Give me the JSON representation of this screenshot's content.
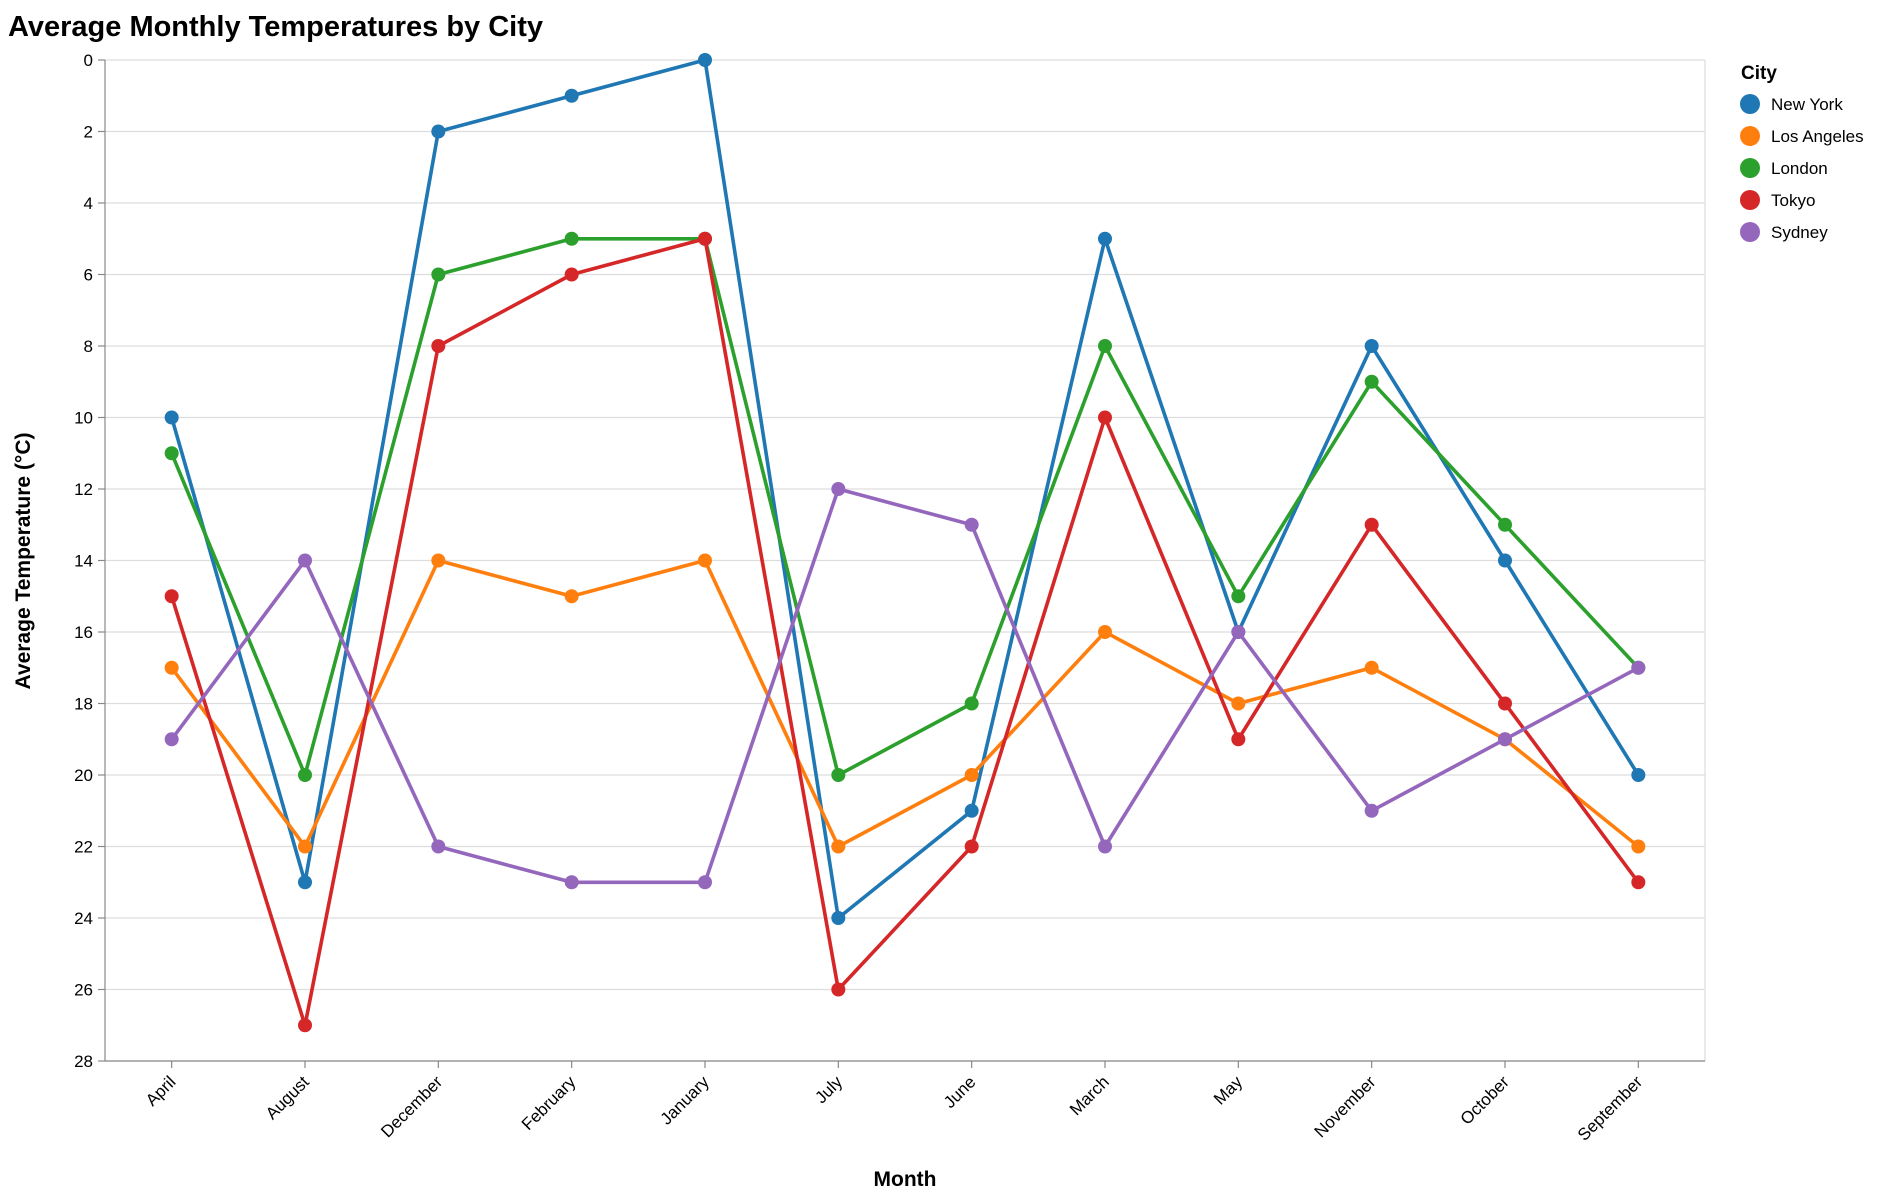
{
  "chart_data": {
    "type": "line",
    "title": "Average Monthly Temperatures by City",
    "xlabel": "Month",
    "ylabel": "Average Temperature (°C)",
    "y_axis_reversed": true,
    "ylim": [
      0,
      28
    ],
    "yticks": [
      0,
      2,
      4,
      6,
      8,
      10,
      12,
      14,
      16,
      18,
      20,
      22,
      24,
      26,
      28
    ],
    "grid": true,
    "legend_title": "City",
    "legend_position": "right",
    "categories": [
      "April",
      "August",
      "December",
      "February",
      "January",
      "July",
      "June",
      "March",
      "May",
      "November",
      "October",
      "September"
    ],
    "series": [
      {
        "name": "New York",
        "color": "#1f77b4",
        "values": [
          10,
          23,
          2,
          1,
          0,
          24,
          21,
          5,
          16,
          8,
          14,
          20
        ]
      },
      {
        "name": "Los Angeles",
        "color": "#ff7f0e",
        "values": [
          17,
          22,
          14,
          15,
          14,
          22,
          20,
          16,
          18,
          17,
          19,
          22
        ]
      },
      {
        "name": "London",
        "color": "#2ca02c",
        "values": [
          11,
          20,
          6,
          5,
          5,
          20,
          18,
          8,
          15,
          9,
          13,
          17
        ]
      },
      {
        "name": "Tokyo",
        "color": "#d62728",
        "values": [
          15,
          27,
          8,
          6,
          5,
          26,
          22,
          10,
          19,
          13,
          18,
          23
        ]
      },
      {
        "name": "Sydney",
        "color": "#9467bd",
        "values": [
          19,
          14,
          22,
          23,
          23,
          12,
          13,
          22,
          16,
          21,
          19,
          17
        ]
      }
    ]
  }
}
